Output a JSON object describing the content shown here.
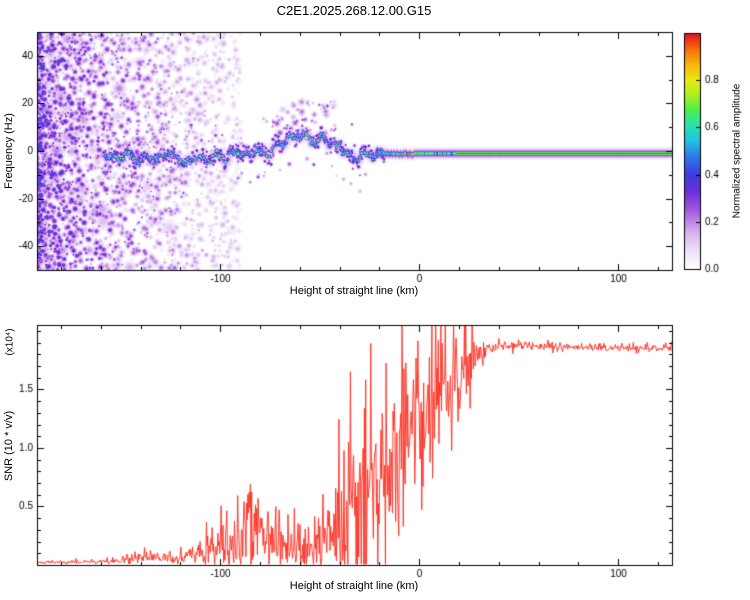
{
  "title": "C2E1.2025.268.12.00.G15",
  "colors": {
    "background": "#ffffff",
    "axis": "#000000",
    "snr_line": "#fb2e20"
  },
  "chart_data": [
    {
      "type": "heatmap",
      "name": "spectrogram",
      "xlabel": "Height of straight line (km)",
      "ylabel": "Frequency (Hz)",
      "xlim": [
        -192,
        127
      ],
      "ylim": [
        -50,
        50
      ],
      "xticks": [
        -100,
        0,
        100
      ],
      "xtick_labels": [
        "-100",
        "0",
        "100"
      ],
      "yticks": [
        -40,
        -20,
        0,
        20,
        40
      ],
      "ytick_labels": [
        "-40",
        "-20",
        "0",
        "20",
        "40"
      ],
      "x_minor_step": 20,
      "y_minor_step": 10,
      "seed": 20250,
      "colorbar": {
        "label": "Normalized spectral amplitude",
        "range": [
          0,
          1
        ],
        "tick_values": [
          0,
          0.2,
          0.4,
          0.6,
          0.8
        ],
        "ticks": [
          "0.0",
          "0.2",
          "0.4",
          "0.6",
          "0.8"
        ],
        "stops": [
          {
            "v": 0.0,
            "c": "#ffffff"
          },
          {
            "v": 0.06,
            "c": "#f3eafa"
          },
          {
            "v": 0.15,
            "c": "#d9b8f0"
          },
          {
            "v": 0.25,
            "c": "#a55ae0"
          },
          {
            "v": 0.33,
            "c": "#6a30d8"
          },
          {
            "v": 0.4,
            "c": "#3c3ce0"
          },
          {
            "v": 0.48,
            "c": "#2f7ae8"
          },
          {
            "v": 0.55,
            "c": "#21c8e0"
          },
          {
            "v": 0.62,
            "c": "#2ce6a0"
          },
          {
            "v": 0.68,
            "c": "#55ee44"
          },
          {
            "v": 0.74,
            "c": "#aaf022"
          },
          {
            "v": 0.8,
            "c": "#eaea12"
          },
          {
            "v": 0.87,
            "c": "#f8b40c"
          },
          {
            "v": 0.93,
            "c": "#f87108"
          },
          {
            "v": 1.0,
            "c": "#e6101e"
          }
        ]
      },
      "noise_region": {
        "x_start": -192,
        "x_end": -90,
        "count": 2800
      },
      "ridge": [
        [
          -158,
          -1
        ],
        [
          -152,
          -3
        ],
        [
          -147,
          -1
        ],
        [
          -142,
          -4
        ],
        [
          -137,
          -2
        ],
        [
          -132,
          -4
        ],
        [
          -127,
          -1
        ],
        [
          -122,
          -3
        ],
        [
          -117,
          -5
        ],
        [
          -112,
          -2
        ],
        [
          -107,
          -4
        ],
        [
          -102,
          -1
        ],
        [
          -97,
          -3
        ],
        [
          -92,
          0
        ],
        [
          -87,
          -2
        ],
        [
          -82,
          1
        ],
        [
          -77,
          -1
        ],
        [
          -72,
          2
        ],
        [
          -68,
          4
        ],
        [
          -64,
          6
        ],
        [
          -60,
          7
        ],
        [
          -56,
          6
        ],
        [
          -52,
          4
        ],
        [
          -48,
          6
        ],
        [
          -45,
          3
        ],
        [
          -42,
          1
        ],
        [
          -40,
          3
        ],
        [
          -37,
          -1
        ],
        [
          -33,
          -3
        ],
        [
          -29,
          -2
        ],
        [
          -26,
          -1
        ],
        [
          -22,
          -1
        ],
        [
          -18,
          -1
        ]
      ],
      "flat_line": {
        "start": -22,
        "end": 127,
        "freq": -1,
        "core_amp": 0.95
      }
    },
    {
      "type": "line",
      "name": "snr",
      "xlabel": "Height of straight line (km)",
      "ylabel": "SNR (10 * v/v)",
      "scale_label": "(x10⁴)",
      "xlim": [
        -192,
        127
      ],
      "ylim": [
        0,
        2.05
      ],
      "xticks": [
        -100,
        0,
        100
      ],
      "xtick_labels": [
        "-100",
        "0",
        "100"
      ],
      "yticks": [
        0.5,
        1.0,
        1.5
      ],
      "ytick_labels": [
        "0.5",
        "1.0",
        "1.5"
      ],
      "x_minor_step": 20,
      "y_minor_step": 0.1,
      "line_color": "#fb2e20",
      "seed": 777,
      "envelope": [
        [
          -192,
          0.02,
          0.012
        ],
        [
          -170,
          0.025,
          0.015
        ],
        [
          -155,
          0.03,
          0.02
        ],
        [
          -145,
          0.04,
          0.03
        ],
        [
          -138,
          0.06,
          0.05
        ],
        [
          -132,
          0.07,
          0.06
        ],
        [
          -125,
          0.05,
          0.04
        ],
        [
          -115,
          0.07,
          0.07
        ],
        [
          -108,
          0.1,
          0.12
        ],
        [
          -100,
          0.14,
          0.22
        ],
        [
          -92,
          0.18,
          0.3
        ],
        [
          -84,
          0.22,
          0.32
        ],
        [
          -76,
          0.22,
          0.3
        ],
        [
          -70,
          0.18,
          0.25
        ],
        [
          -64,
          0.13,
          0.15
        ],
        [
          -58,
          0.12,
          0.18
        ],
        [
          -52,
          0.14,
          0.25
        ],
        [
          -46,
          0.18,
          0.35
        ],
        [
          -41,
          0.25,
          0.6
        ],
        [
          -36,
          0.3,
          0.8
        ],
        [
          -31,
          0.45,
          0.9
        ],
        [
          -26,
          0.55,
          0.85
        ],
        [
          -21,
          0.7,
          0.8
        ],
        [
          -16,
          0.85,
          0.75
        ],
        [
          -11,
          1.0,
          0.7
        ],
        [
          -6,
          1.05,
          0.6
        ],
        [
          -1,
          1.1,
          0.55
        ],
        [
          4,
          1.2,
          0.5
        ],
        [
          9,
          1.3,
          0.45
        ],
        [
          14,
          1.4,
          0.4
        ],
        [
          19,
          1.5,
          0.35
        ],
        [
          24,
          1.65,
          0.3
        ],
        [
          29,
          1.78,
          0.12
        ],
        [
          34,
          1.84,
          0.05
        ],
        [
          45,
          1.87,
          0.035
        ],
        [
          70,
          1.86,
          0.03
        ],
        [
          100,
          1.85,
          0.03
        ],
        [
          127,
          1.85,
          0.03
        ]
      ]
    }
  ]
}
